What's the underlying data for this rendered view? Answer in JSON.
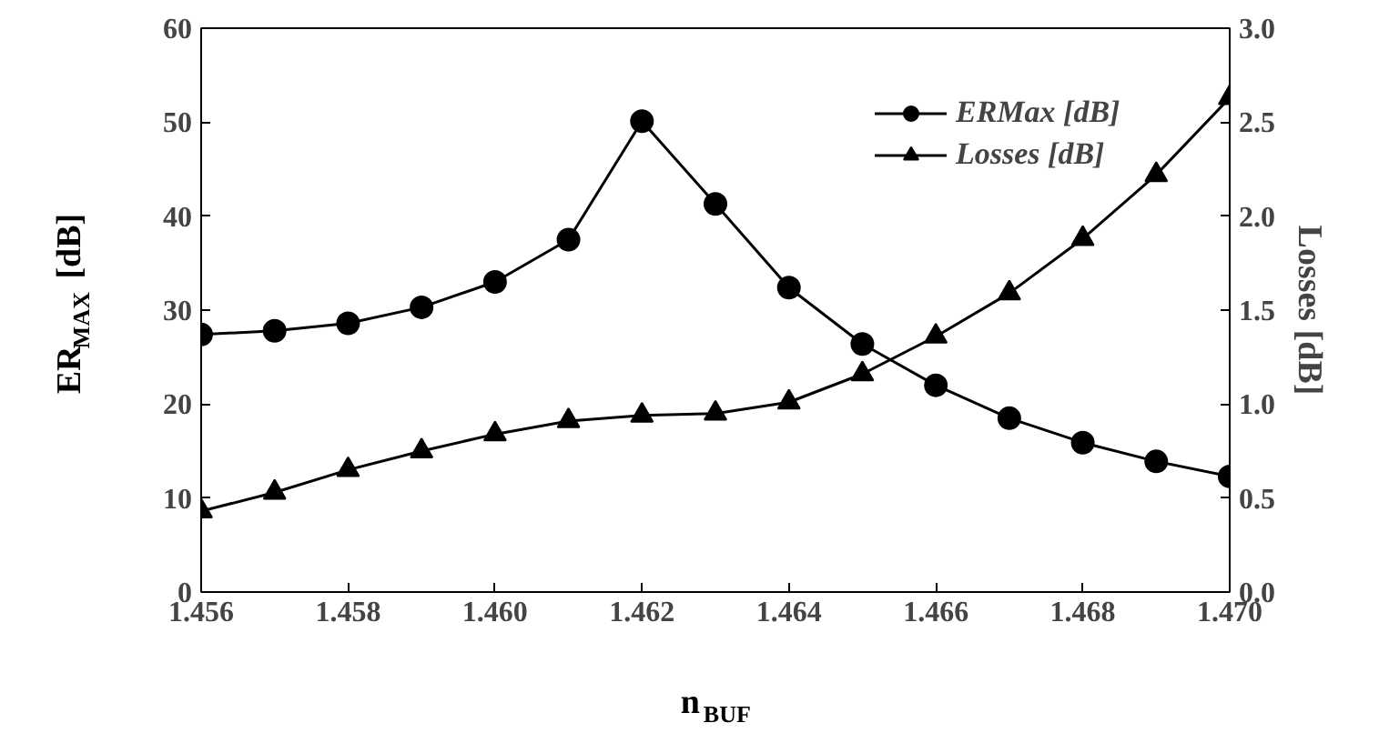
{
  "chart_data": {
    "type": "line",
    "xlabel": "n$_{BUF}$",
    "ylabel": "ER$_{MAX}$ [dB]",
    "y2label": "Losses [dB]",
    "x": [
      1.456,
      1.457,
      1.458,
      1.459,
      1.46,
      1.461,
      1.462,
      1.463,
      1.464,
      1.465,
      1.466,
      1.467,
      1.468,
      1.469,
      1.47
    ],
    "xlim": [
      1.456,
      1.47
    ],
    "xticks": [
      {
        "value": 1.456,
        "label": "1.456"
      },
      {
        "value": 1.458,
        "label": "1.458"
      },
      {
        "value": 1.46,
        "label": "1.460"
      },
      {
        "value": 1.462,
        "label": "1.462"
      },
      {
        "value": 1.464,
        "label": "1.464"
      },
      {
        "value": 1.466,
        "label": "1.466"
      },
      {
        "value": 1.468,
        "label": "1.468"
      },
      {
        "value": 1.47,
        "label": "1.470"
      }
    ],
    "ylim": [
      0,
      60
    ],
    "yticks": [
      0,
      10,
      20,
      30,
      40,
      50,
      60
    ],
    "y2lim": [
      0,
      3
    ],
    "y2ticks": [
      {
        "value": 0,
        "label": "0.0"
      },
      {
        "value": 0.5,
        "label": "0.5"
      },
      {
        "value": 1,
        "label": "1.0"
      },
      {
        "value": 1.5,
        "label": "1.5"
      },
      {
        "value": 2,
        "label": "2.0"
      },
      {
        "value": 2.5,
        "label": "2.5"
      },
      {
        "value": 3,
        "label": "3.0"
      }
    ],
    "series": [
      {
        "name": "ERMax [dB]",
        "color": "#000000",
        "marker": "circle",
        "values": [
          27.4,
          27.8,
          28.6,
          30.3,
          33.0,
          37.5,
          50.1,
          41.3,
          32.4,
          26.4,
          22.0,
          18.5,
          15.9,
          13.9,
          12.3
        ]
      },
      {
        "name": "Losses [dB]",
        "color": "#000000",
        "marker": "triangle",
        "axis": "y2",
        "values": [
          0.43,
          0.53,
          0.65,
          0.75,
          0.84,
          0.91,
          0.94,
          0.95,
          1.01,
          1.16,
          1.36,
          1.59,
          1.88,
          2.22,
          2.63
        ]
      }
    ],
    "grid": false,
    "legend": "top"
  }
}
